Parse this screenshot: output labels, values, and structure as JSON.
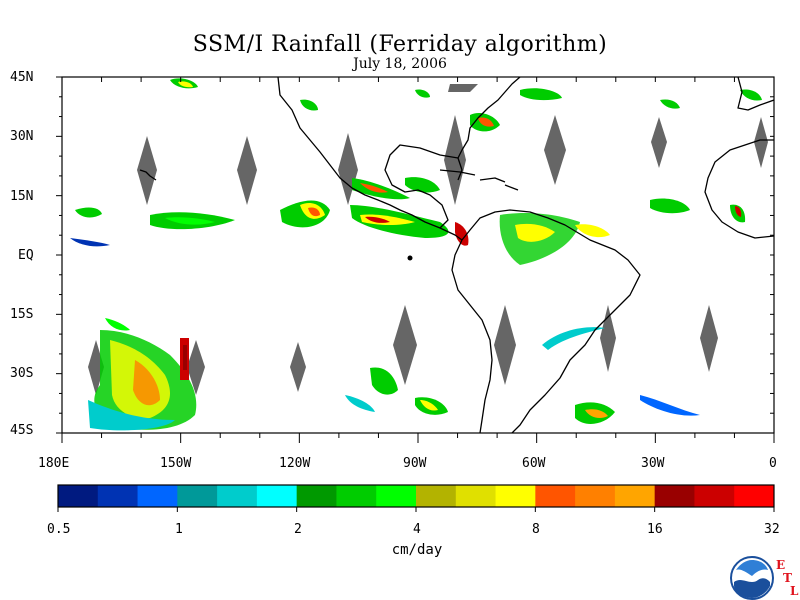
{
  "title": "SSM/I Rainfall (Ferriday algorithm)",
  "date": "July 18, 2006",
  "latitude_labels": [
    "45N",
    "30N",
    "15N",
    "EQ",
    "15S",
    "30S",
    "45S"
  ],
  "longitude_labels": [
    "180E",
    "150W",
    "120W",
    "90W",
    "60W",
    "30W",
    "0"
  ],
  "colorbar": {
    "unit": "cm/day",
    "tick_labels": [
      "0.5",
      "1",
      "2",
      "4",
      "8",
      "16",
      "32"
    ],
    "colors": [
      "#001a80",
      "#0033b3",
      "#0066ff",
      "#009999",
      "#00cccc",
      "#00ffff",
      "#009900",
      "#00cc00",
      "#00ff00",
      "#b3b300",
      "#e0e000",
      "#ffff00",
      "#ff5500",
      "#ff8000",
      "#ffa500",
      "#990000",
      "#cc0000",
      "#ff0000"
    ]
  },
  "map_colors": {
    "land_outline": "#000000",
    "no_data_swath": "#666666",
    "background": "#ffffff"
  },
  "logo": {
    "name": "NOAA",
    "letters": [
      "E",
      "T",
      "L"
    ]
  }
}
